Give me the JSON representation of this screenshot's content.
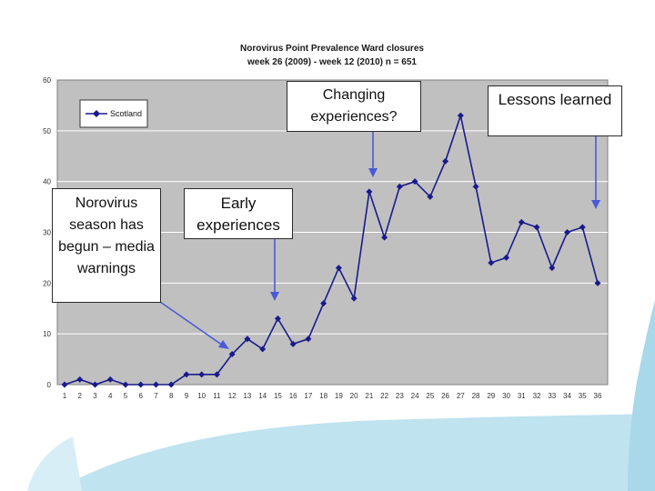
{
  "chart_data": {
    "type": "line",
    "title_line1": "Norovirus Point Prevalence Ward closures",
    "title_line2": "week 26 (2009) - week 12 (2010)  n = 651",
    "categories": [
      "1",
      "2",
      "3",
      "4",
      "5",
      "6",
      "7",
      "8",
      "9",
      "10",
      "11",
      "12",
      "13",
      "14",
      "15",
      "16",
      "17",
      "18",
      "19",
      "20",
      "21",
      "22",
      "23",
      "24",
      "25",
      "26",
      "27",
      "28",
      "29",
      "30",
      "31",
      "32",
      "33",
      "34",
      "35",
      "36"
    ],
    "series": [
      {
        "name": "Scotland",
        "values": [
          0,
          1,
          0,
          1,
          0,
          0,
          0,
          0,
          2,
          2,
          2,
          6,
          9,
          7,
          13,
          8,
          9,
          16,
          23,
          17,
          38,
          29,
          39,
          40,
          37,
          44,
          53,
          39,
          24,
          25,
          32,
          31,
          23,
          30,
          31,
          20
        ]
      }
    ],
    "ylim": [
      0,
      60
    ],
    "yticks": [
      0,
      10,
      20,
      30,
      40,
      50,
      60
    ],
    "grid": true,
    "legend_position": "top-left",
    "line_color": "#1a1a8c",
    "plot_bg": "#c0c0c0"
  },
  "callouts": {
    "norovirus": "Norovirus season has begun – media warnings",
    "early": "Early experiences",
    "changing": "Changing experiences?",
    "lessons": "Lessons learned"
  },
  "arrow_color": "#4a5ad8"
}
